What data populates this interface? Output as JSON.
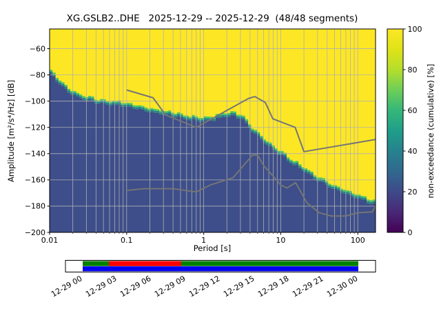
{
  "chart_data": {
    "type": "heatmap",
    "subtype": "ppsd-cumulative-spectrogram",
    "title": "XG.GSLB2..DHE   2025-12-29 -- 2025-12-29  (48/48 segments)",
    "station": "XG.GSLB2..DHE",
    "date_range": "2025-12-29 -- 2025-12-29",
    "segments": "48/48 segments",
    "xlabel": "Period [s]",
    "ylabel": "Amplitude [m²/s⁴/Hz] [dB]",
    "x_scale": "log",
    "xlim": [
      0.01,
      170
    ],
    "ylim": [
      -200,
      -45
    ],
    "grid": true,
    "x_ticks": [
      "0.01",
      "0.1",
      "1",
      "10",
      "100"
    ],
    "x_tick_values": [
      0.01,
      0.1,
      1,
      10,
      100
    ],
    "y_ticks": [
      "−60",
      "−80",
      "−100",
      "−120",
      "−140",
      "−160",
      "−180",
      "−200"
    ],
    "y_tick_values": [
      -60,
      -80,
      -100,
      -120,
      -140,
      -160,
      -180,
      -200
    ],
    "colorbar": {
      "label": "non-exceedance (cumulative) [%]",
      "ticks": [
        "0",
        "20",
        "40",
        "60",
        "80",
        "100"
      ],
      "tick_values": [
        0,
        20,
        40,
        60,
        80,
        100
      ],
      "colormap": "viridis",
      "stops": [
        [
          0,
          "#440154"
        ],
        [
          0.1,
          "#482878"
        ],
        [
          0.2,
          "#3e4a89"
        ],
        [
          0.3,
          "#31688e"
        ],
        [
          0.4,
          "#26828e"
        ],
        [
          0.5,
          "#1f9e89"
        ],
        [
          0.6,
          "#35b779"
        ],
        [
          0.7,
          "#6ece58"
        ],
        [
          0.8,
          "#b5de2b"
        ],
        [
          0.9,
          "#dfe318"
        ],
        [
          1,
          "#fde725"
        ]
      ]
    },
    "cumulative_boundary": {
      "description": "Approximate dB level per period of the sharp transition from low (dark blue) to 100% (yellow) cumulative non-exceedance",
      "points": [
        [
          0.01,
          -78
        ],
        [
          0.013,
          -86
        ],
        [
          0.017,
          -92
        ],
        [
          0.022,
          -96
        ],
        [
          0.03,
          -99
        ],
        [
          0.045,
          -102
        ],
        [
          0.07,
          -103
        ],
        [
          0.1,
          -104
        ],
        [
          0.14,
          -106
        ],
        [
          0.2,
          -108
        ],
        [
          0.3,
          -110
        ],
        [
          0.45,
          -112
        ],
        [
          0.65,
          -114
        ],
        [
          0.9,
          -115
        ],
        [
          1.3,
          -114.5
        ],
        [
          1.8,
          -112.5
        ],
        [
          2.4,
          -111
        ],
        [
          3,
          -113
        ],
        [
          3.6,
          -117
        ],
        [
          4.5,
          -124
        ],
        [
          6,
          -131
        ],
        [
          8,
          -137
        ],
        [
          10,
          -141
        ],
        [
          14,
          -147
        ],
        [
          20,
          -153
        ],
        [
          28,
          -159
        ],
        [
          40,
          -164
        ],
        [
          60,
          -169
        ],
        [
          85,
          -172.5
        ],
        [
          120,
          -176
        ],
        [
          170,
          -179
        ]
      ]
    },
    "noise_models": {
      "color": "#757575",
      "nhnm": [
        [
          0.1,
          -91.5
        ],
        [
          0.22,
          -97.4
        ],
        [
          0.32,
          -110.5
        ],
        [
          0.8,
          -120
        ],
        [
          3.8,
          -98
        ],
        [
          4.6,
          -96.5
        ],
        [
          6.3,
          -101
        ],
        [
          7.9,
          -113.5
        ],
        [
          15.4,
          -120
        ],
        [
          20,
          -138.5
        ],
        [
          354.8,
          -126
        ]
      ],
      "nlnm": [
        [
          0.1,
          -168
        ],
        [
          0.17,
          -166.7
        ],
        [
          0.4,
          -166.7
        ],
        [
          0.8,
          -169.2
        ],
        [
          1.24,
          -163.7
        ],
        [
          2.4,
          -158.4
        ],
        [
          4.3,
          -141.1
        ],
        [
          5,
          -141.1
        ],
        [
          6,
          -149
        ],
        [
          10,
          -163.8
        ],
        [
          12,
          -166.2
        ],
        [
          15.6,
          -162.1
        ],
        [
          21.9,
          -177.5
        ],
        [
          31.6,
          -185
        ],
        [
          45,
          -187.5
        ],
        [
          70,
          -187.5
        ],
        [
          101,
          -185
        ],
        [
          154,
          -184.4
        ],
        [
          328,
          -151.9
        ]
      ]
    },
    "colors": {
      "background_high": "#fde725",
      "background_low": "#3d4e8a",
      "edge_teal": "#26828e",
      "edge_green": "#50c46a",
      "grid": "#b0b0b0"
    },
    "coverage": {
      "labels": [
        "12-29 00",
        "12-29 03",
        "12-29 06",
        "12-29 09",
        "12-29 12",
        "12-29 15",
        "12-29 18",
        "12-29 21",
        "12-30 00"
      ],
      "rows": [
        {
          "name": "segments-used",
          "color": "#008000",
          "row": "top",
          "from": 0,
          "to": 1
        },
        {
          "name": "highlighted-interval",
          "color": "#ff0000",
          "row": "top",
          "from": 0.095,
          "to": 0.357
        },
        {
          "name": "data-coverage",
          "color": "#0000ee",
          "row": "bottom",
          "from": 0,
          "to": 1
        }
      ]
    }
  }
}
